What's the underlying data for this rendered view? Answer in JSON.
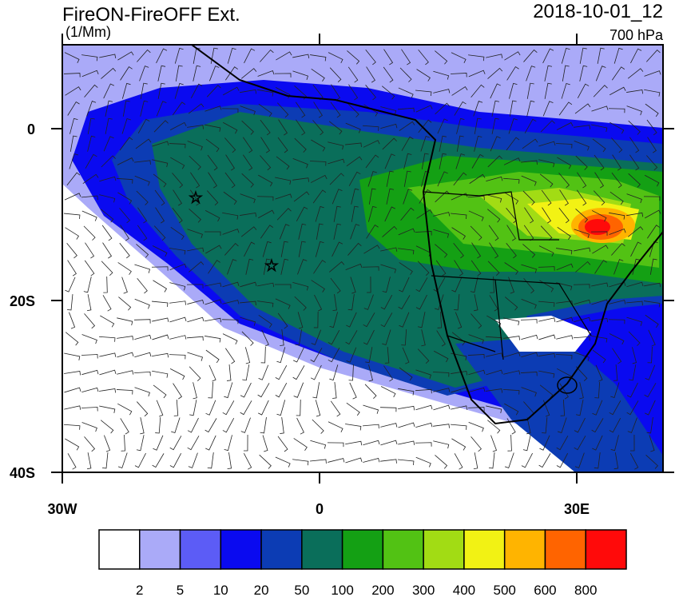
{
  "header": {
    "title": "FireON-FireOFF Ext.",
    "units": "(1/Mm)",
    "time": "2018-10-01_12",
    "level": "700 hPa"
  },
  "axes": {
    "lat_ticks": [
      {
        "value": 0,
        "label": "0"
      },
      {
        "value": -20,
        "label": "20S"
      },
      {
        "value": -40,
        "label": "40S"
      }
    ],
    "lon_ticks": [
      {
        "value": -30,
        "label": "30W"
      },
      {
        "value": 0,
        "label": "0"
      },
      {
        "value": 30,
        "label": "30E"
      }
    ]
  },
  "colorbar": {
    "levels": [
      2,
      5,
      10,
      20,
      50,
      100,
      200,
      300,
      400,
      500,
      600,
      800
    ],
    "colors": [
      "#ffffff",
      "#aaaaf8",
      "#5c5cf6",
      "#0a0af0",
      "#0c3cb4",
      "#0a6e5a",
      "#14a014",
      "#52c214",
      "#a2dc14",
      "#f2f214",
      "#ffb400",
      "#ff6400",
      "#ff0a0a"
    ]
  }
}
